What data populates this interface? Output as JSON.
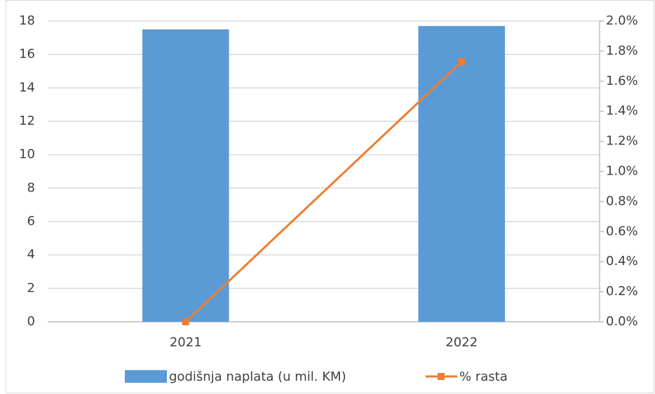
{
  "chart_data": {
    "type": "combo",
    "categories": [
      "2021",
      "2022"
    ],
    "series": [
      {
        "name": "godišnja naplata (u mil. KM)",
        "type": "bar",
        "color": "#5b9bd5",
        "values": [
          17.5,
          17.7
        ]
      },
      {
        "name": "% rasta",
        "type": "line",
        "color": "#ed7d31",
        "axis": "y2",
        "values": [
          0,
          1.73
        ]
      }
    ],
    "ylim": [
      0,
      18
    ],
    "yticks": [
      0,
      2,
      4,
      6,
      8,
      10,
      12,
      14,
      16,
      18
    ],
    "y2lim": [
      0,
      2.0
    ],
    "y2ticks": [
      {
        "value": 0,
        "label": "0.0%"
      },
      {
        "value": 0.2,
        "label": "0.2%"
      },
      {
        "value": 0.4,
        "label": "0.4%"
      },
      {
        "value": 0.6,
        "label": "0.6%"
      },
      {
        "value": 0.8,
        "label": "0.8%"
      },
      {
        "value": 1.0,
        "label": "1.0%"
      },
      {
        "value": 1.2,
        "label": "1.2%"
      },
      {
        "value": 1.4,
        "label": "1.4%"
      },
      {
        "value": 1.6,
        "label": "1.6%"
      },
      {
        "value": 1.8,
        "label": "1.8%"
      },
      {
        "value": 2.0,
        "label": "2.0%"
      }
    ],
    "grid": true,
    "legend": "bottom"
  }
}
